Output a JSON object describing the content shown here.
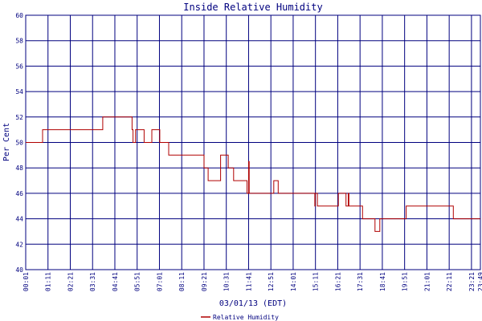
{
  "colors": {
    "text": "#00007f",
    "grid": "#00007f",
    "series": "#b00000",
    "background": "#ffffff"
  },
  "chart_data": {
    "type": "line",
    "title": "Inside Relative Humidity",
    "xlabel": "03/01/13 (EDT)",
    "ylabel": "Per Cent",
    "ylim": [
      40,
      60
    ],
    "yticks": [
      40,
      42,
      44,
      46,
      48,
      50,
      52,
      54,
      56,
      58,
      60
    ],
    "xticks": [
      "00:01",
      "01:11",
      "02:21",
      "03:31",
      "04:41",
      "05:51",
      "07:01",
      "08:11",
      "09:21",
      "10:31",
      "11:41",
      "12:51",
      "14:01",
      "15:11",
      "16:21",
      "17:31",
      "18:41",
      "19:51",
      "21:01",
      "22:11",
      "23:21",
      "23:49"
    ],
    "grid": true,
    "legend": "bottom",
    "series": [
      {
        "name": "Relative Humidity",
        "x": [
          "00:01",
          "00:49",
          "00:54",
          "01:00",
          "03:55",
          "04:03",
          "04:51",
          "05:35",
          "05:38",
          "05:46",
          "06:13",
          "06:19",
          "06:37",
          "07:02",
          "07:30",
          "08:42",
          "09:21",
          "09:26",
          "09:34",
          "10:08",
          "10:13",
          "10:28",
          "10:37",
          "10:49",
          "10:54",
          "11:25",
          "11:36",
          "11:41",
          "11:43",
          "11:44",
          "11:47",
          "11:55",
          "12:54",
          "13:00",
          "13:04",
          "13:14",
          "14:01",
          "15:07",
          "15:09",
          "15:10",
          "15:14",
          "15:17",
          "15:21",
          "15:27",
          "16:18",
          "16:23",
          "16:45",
          "16:47",
          "16:54",
          "16:56",
          "17:01",
          "17:33",
          "17:39",
          "17:41",
          "18:14",
          "18:18",
          "18:29",
          "18:33",
          "18:35",
          "19:02",
          "19:53",
          "19:56",
          "19:58",
          "22:06",
          "22:21",
          "22:24",
          "23:49"
        ],
        "values": [
          50,
          50,
          51,
          51,
          51,
          52,
          52,
          51,
          50,
          51,
          50,
          50,
          51,
          50,
          49,
          49,
          48,
          48,
          47,
          47,
          49,
          49,
          48,
          48,
          47,
          47,
          46,
          48.5,
          46,
          46,
          46,
          46,
          46,
          47,
          47,
          46,
          46,
          46,
          45,
          46,
          46,
          45,
          45,
          45,
          45,
          46,
          46,
          45,
          46,
          45,
          45,
          45,
          44,
          44,
          44,
          43,
          43,
          44,
          44,
          44,
          44,
          45,
          45,
          45,
          45,
          44,
          44
        ]
      }
    ]
  }
}
